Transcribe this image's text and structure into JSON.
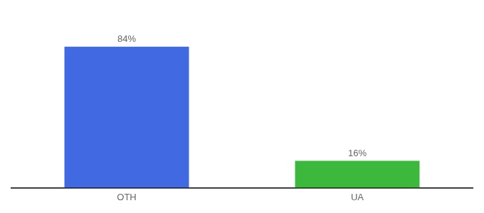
{
  "chart_data": {
    "type": "bar",
    "categories": [
      "OTH",
      "UA"
    ],
    "values": [
      84,
      16
    ],
    "value_labels": [
      "84%",
      "16%"
    ],
    "colors": [
      "#4169E1",
      "#3CB93C"
    ],
    "ylim": [
      0,
      100
    ],
    "data_labels": true,
    "tick_labels": "x",
    "grid": false
  }
}
